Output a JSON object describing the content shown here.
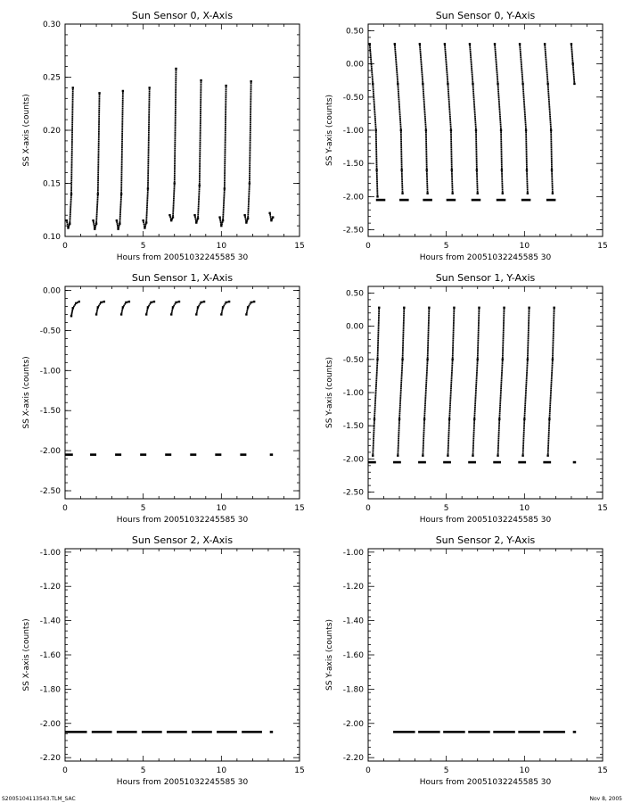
{
  "footer": {
    "left": "S2005104113543.TLM_SAC",
    "right": "Nov  8, 2005"
  },
  "chart_data": [
    {
      "type": "scatter",
      "title": "Sun Sensor 0, X-Axis",
      "xlabel": "Hours from 20051032245585 30",
      "ylabel": "SS X-axis (counts)",
      "xlim": [
        0,
        15
      ],
      "ylim": [
        0.1,
        0.3
      ],
      "xticks": [
        "0",
        "5",
        "10",
        "15"
      ],
      "yticks": [
        "0.10",
        "0.15",
        "0.20",
        "0.25",
        "0.30"
      ],
      "grid": false,
      "series": [
        {
          "x": [
            0.1,
            0.2,
            0.3,
            0.4,
            0.5
          ],
          "y": [
            0.115,
            0.108,
            0.112,
            0.14,
            0.24
          ]
        },
        {
          "x": [
            1.8,
            1.9,
            2.0,
            2.1,
            2.2
          ],
          "y": [
            0.115,
            0.107,
            0.112,
            0.14,
            0.235
          ]
        },
        {
          "x": [
            3.3,
            3.4,
            3.5,
            3.6,
            3.7
          ],
          "y": [
            0.115,
            0.107,
            0.112,
            0.14,
            0.237
          ]
        },
        {
          "x": [
            5.0,
            5.1,
            5.2,
            5.3,
            5.4
          ],
          "y": [
            0.115,
            0.108,
            0.113,
            0.145,
            0.24
          ]
        },
        {
          "x": [
            6.7,
            6.8,
            6.9,
            7.0,
            7.1
          ],
          "y": [
            0.12,
            0.115,
            0.118,
            0.15,
            0.258
          ]
        },
        {
          "x": [
            8.3,
            8.4,
            8.5,
            8.6,
            8.7
          ],
          "y": [
            0.12,
            0.113,
            0.117,
            0.148,
            0.247
          ]
        },
        {
          "x": [
            9.9,
            10.0,
            10.1,
            10.2,
            10.3
          ],
          "y": [
            0.118,
            0.11,
            0.115,
            0.145,
            0.242
          ]
        },
        {
          "x": [
            11.5,
            11.6,
            11.7,
            11.8,
            11.9
          ],
          "y": [
            0.12,
            0.113,
            0.117,
            0.15,
            0.246
          ]
        },
        {
          "x": [
            13.1,
            13.2,
            13.3
          ],
          "y": [
            0.122,
            0.115,
            0.118
          ]
        }
      ]
    },
    {
      "type": "scatter",
      "title": "Sun Sensor 0, Y-Axis",
      "xlabel": "Hours from 20051032245585 30",
      "ylabel": "SS Y-axis (counts)",
      "xlim": [
        0,
        15
      ],
      "ylim": [
        -2.6,
        0.6
      ],
      "xticks": [
        "0",
        "5",
        "10",
        "15"
      ],
      "yticks": [
        "-2.50",
        "-2.00",
        "-1.50",
        "-1.00",
        "-0.50",
        "0.00",
        "0.50"
      ],
      "grid": false,
      "series": [
        {
          "x": [
            0.1,
            0.3,
            0.5,
            0.55,
            0.6
          ],
          "y": [
            0.3,
            -0.3,
            -1.0,
            -1.6,
            -2.0
          ]
        },
        {
          "x": [
            1.7,
            1.9,
            2.1,
            2.15,
            2.2
          ],
          "y": [
            0.3,
            -0.3,
            -1.0,
            -1.6,
            -1.95
          ]
        },
        {
          "x": [
            3.3,
            3.5,
            3.7,
            3.75,
            3.8
          ],
          "y": [
            0.3,
            -0.3,
            -1.0,
            -1.6,
            -1.95
          ]
        },
        {
          "x": [
            4.9,
            5.1,
            5.3,
            5.35,
            5.4
          ],
          "y": [
            0.3,
            -0.3,
            -1.0,
            -1.6,
            -1.95
          ]
        },
        {
          "x": [
            6.5,
            6.7,
            6.9,
            6.95,
            7.0
          ],
          "y": [
            0.3,
            -0.3,
            -1.0,
            -1.6,
            -1.95
          ]
        },
        {
          "x": [
            8.1,
            8.3,
            8.5,
            8.55,
            8.6
          ],
          "y": [
            0.3,
            -0.3,
            -1.0,
            -1.6,
            -1.95
          ]
        },
        {
          "x": [
            9.7,
            9.9,
            10.1,
            10.15,
            10.2
          ],
          "y": [
            0.3,
            -0.3,
            -1.0,
            -1.6,
            -1.95
          ]
        },
        {
          "x": [
            11.3,
            11.5,
            11.7,
            11.75,
            11.8
          ],
          "y": [
            0.3,
            -0.3,
            -1.0,
            -1.6,
            -1.95
          ]
        },
        {
          "x": [
            13.0,
            13.1,
            13.2
          ],
          "y": [
            0.3,
            0.0,
            -0.3
          ]
        }
      ],
      "floor": {
        "y": -2.05,
        "segments": [
          [
            0.5,
            1.1
          ],
          [
            2.0,
            2.6
          ],
          [
            3.5,
            4.1
          ],
          [
            5.0,
            5.6
          ],
          [
            6.6,
            7.2
          ],
          [
            8.2,
            8.8
          ],
          [
            9.8,
            10.4
          ],
          [
            11.4,
            12.0
          ]
        ]
      }
    },
    {
      "type": "scatter",
      "title": "Sun Sensor 1, X-Axis",
      "xlabel": "Hours from 20051032245585 30",
      "ylabel": "SS X-axis (counts)",
      "xlim": [
        0,
        15
      ],
      "ylim": [
        -2.6,
        0.05
      ],
      "xticks": [
        "0",
        "5",
        "10",
        "15"
      ],
      "yticks": [
        "-2.50",
        "-2.00",
        "-1.50",
        "-1.00",
        "-0.50",
        "0.00"
      ],
      "grid": false,
      "series": [
        {
          "x": [
            0.4,
            0.5,
            0.7,
            0.9
          ],
          "y": [
            -0.32,
            -0.22,
            -0.16,
            -0.14
          ]
        },
        {
          "x": [
            2.0,
            2.1,
            2.3,
            2.5
          ],
          "y": [
            -0.3,
            -0.21,
            -0.15,
            -0.14
          ]
        },
        {
          "x": [
            3.6,
            3.7,
            3.9,
            4.1
          ],
          "y": [
            -0.3,
            -0.21,
            -0.15,
            -0.14
          ]
        },
        {
          "x": [
            5.2,
            5.3,
            5.5,
            5.7
          ],
          "y": [
            -0.3,
            -0.21,
            -0.15,
            -0.14
          ]
        },
        {
          "x": [
            6.8,
            6.9,
            7.1,
            7.3
          ],
          "y": [
            -0.3,
            -0.21,
            -0.15,
            -0.14
          ]
        },
        {
          "x": [
            8.4,
            8.5,
            8.7,
            8.9
          ],
          "y": [
            -0.3,
            -0.21,
            -0.15,
            -0.14
          ]
        },
        {
          "x": [
            10.0,
            10.1,
            10.3,
            10.5
          ],
          "y": [
            -0.3,
            -0.21,
            -0.15,
            -0.14
          ]
        },
        {
          "x": [
            11.6,
            11.7,
            11.9,
            12.1
          ],
          "y": [
            -0.3,
            -0.21,
            -0.15,
            -0.14
          ]
        }
      ],
      "floor": {
        "y": -2.05,
        "segments": [
          [
            0.0,
            0.5
          ],
          [
            1.6,
            2.0
          ],
          [
            3.2,
            3.6
          ],
          [
            4.8,
            5.2
          ],
          [
            6.4,
            6.8
          ],
          [
            8.0,
            8.4
          ],
          [
            9.6,
            10.0
          ],
          [
            11.2,
            11.6
          ],
          [
            13.1,
            13.3
          ]
        ]
      }
    },
    {
      "type": "scatter",
      "title": "Sun Sensor 1, Y-Axis",
      "xlabel": "Hours from 20051032245585 30",
      "ylabel": "SS Y-axis (counts)",
      "xlim": [
        0,
        15
      ],
      "ylim": [
        -2.6,
        0.6
      ],
      "xticks": [
        "0",
        "5",
        "10",
        "15"
      ],
      "yticks": [
        "-2.50",
        "-2.00",
        "-1.50",
        "-1.00",
        "-0.50",
        "0.00",
        "0.50"
      ],
      "grid": false,
      "series": [
        {
          "x": [
            0.3,
            0.4,
            0.6,
            0.7
          ],
          "y": [
            -1.95,
            -1.4,
            -0.5,
            0.28
          ]
        },
        {
          "x": [
            1.9,
            2.0,
            2.2,
            2.3
          ],
          "y": [
            -1.95,
            -1.4,
            -0.5,
            0.28
          ]
        },
        {
          "x": [
            3.5,
            3.6,
            3.8,
            3.9
          ],
          "y": [
            -1.95,
            -1.4,
            -0.5,
            0.28
          ]
        },
        {
          "x": [
            5.1,
            5.2,
            5.4,
            5.5
          ],
          "y": [
            -1.95,
            -1.4,
            -0.5,
            0.28
          ]
        },
        {
          "x": [
            6.7,
            6.8,
            7.0,
            7.1
          ],
          "y": [
            -1.95,
            -1.4,
            -0.5,
            0.28
          ]
        },
        {
          "x": [
            8.3,
            8.4,
            8.6,
            8.7
          ],
          "y": [
            -1.95,
            -1.4,
            -0.5,
            0.28
          ]
        },
        {
          "x": [
            9.9,
            10.0,
            10.2,
            10.3
          ],
          "y": [
            -1.95,
            -1.4,
            -0.5,
            0.28
          ]
        },
        {
          "x": [
            11.5,
            11.6,
            11.8,
            11.9
          ],
          "y": [
            -1.95,
            -1.4,
            -0.5,
            0.28
          ]
        }
      ],
      "floor": {
        "y": -2.05,
        "segments": [
          [
            0.0,
            0.5
          ],
          [
            1.6,
            2.1
          ],
          [
            3.2,
            3.7
          ],
          [
            4.8,
            5.3
          ],
          [
            6.4,
            6.9
          ],
          [
            8.0,
            8.5
          ],
          [
            9.6,
            10.1
          ],
          [
            11.2,
            11.7
          ],
          [
            13.1,
            13.3
          ]
        ]
      }
    },
    {
      "type": "scatter",
      "title": "Sun Sensor 2, X-Axis",
      "xlabel": "Hours from 20051032245585 30",
      "ylabel": "SS X-axis (counts)",
      "xlim": [
        0,
        15
      ],
      "ylim": [
        -2.22,
        -0.98
      ],
      "xticks": [
        "0",
        "5",
        "10",
        "15"
      ],
      "yticks": [
        "-2.20",
        "-2.00",
        "-1.80",
        "-1.60",
        "-1.40",
        "-1.20",
        "-1.00"
      ],
      "grid": false,
      "series": [],
      "floor": {
        "y": -2.05,
        "segments": [
          [
            0.0,
            1.4
          ],
          [
            1.7,
            3.0
          ],
          [
            3.3,
            4.6
          ],
          [
            4.9,
            6.2
          ],
          [
            6.5,
            7.8
          ],
          [
            8.1,
            9.4
          ],
          [
            9.7,
            11.0
          ],
          [
            11.3,
            12.6
          ],
          [
            13.1,
            13.3
          ]
        ]
      }
    },
    {
      "type": "scatter",
      "title": "Sun Sensor 2, Y-Axis",
      "xlabel": "Hours from 20051032245585 30",
      "ylabel": "SS Y-axis (counts)",
      "xlim": [
        0,
        15
      ],
      "ylim": [
        -2.22,
        -0.98
      ],
      "xticks": [
        "0",
        "5",
        "10",
        "15"
      ],
      "yticks": [
        "-2.20",
        "-2.00",
        "-1.80",
        "-1.60",
        "-1.40",
        "-1.20",
        "-1.00"
      ],
      "grid": false,
      "series": [],
      "floor": {
        "y": -2.05,
        "segments": [
          [
            1.6,
            3.0
          ],
          [
            3.2,
            4.6
          ],
          [
            4.8,
            6.2
          ],
          [
            6.4,
            7.8
          ],
          [
            8.0,
            9.4
          ],
          [
            9.6,
            11.0
          ],
          [
            11.2,
            12.6
          ],
          [
            13.1,
            13.3
          ]
        ]
      }
    }
  ]
}
